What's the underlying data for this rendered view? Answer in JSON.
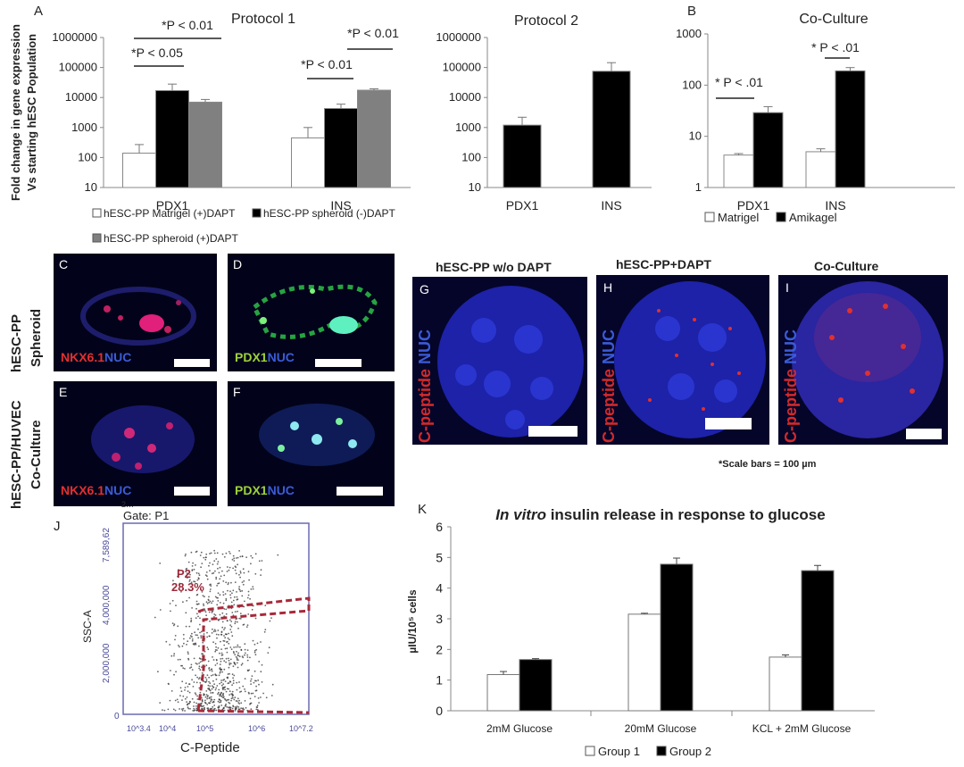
{
  "panels": {
    "a_letter": "A",
    "b_letter": "B",
    "c_letter": "C",
    "d_letter": "D",
    "e_letter": "E",
    "f_letter": "F",
    "g_letter": "G",
    "h_letter": "H",
    "i_letter": "I",
    "j_letter": "J",
    "k_letter": "K"
  },
  "micrographs": {
    "row1_label_a": "hESC-PP",
    "row1_label_b": "Spheroid",
    "row2_label_a": "hESC-PP/HUVEC",
    "row2_label_b": "Co-Culture",
    "c_stain_red": "NKX6.1",
    "c_stain_blue": "NUC",
    "d_stain_green": "PDX1",
    "d_stain_blue": "NUC",
    "e_stain_red": "NKX6.1",
    "e_stain_blue": "NUC",
    "f_stain_green": "PDX1",
    "f_stain_blue": "NUC",
    "g_title": "hESC-PP w/o DAPT",
    "h_title": "hESC-PP+DAPT",
    "i_title": "Co-Culture",
    "cpep_red": "C-peptide",
    "cpep_blue": "NUC",
    "scale_note": "*Scale bars = 100 µm"
  },
  "flow": {
    "gate": "Gate: P1",
    "ytop": "7,589,62",
    "top_fragment": "2…",
    "gate_name": "P2",
    "gate_pct": "28.3%",
    "ylabel": "SSC-A",
    "xlabel": "C-Peptide",
    "yticks": [
      "4,000,000",
      "2,000,000",
      "0"
    ],
    "xticks": [
      "10^3.4",
      "10^4",
      "10^5",
      "10^6",
      "10^7.2"
    ]
  },
  "chart_data": [
    {
      "id": "A",
      "type": "bar",
      "title": "Protocol 1",
      "ylabel_line1": "Fold change in gene expression",
      "ylabel_line2": "Vs starting hESC Population",
      "yscale": "log",
      "ylim": [
        10,
        1000000
      ],
      "yticks": [
        "10",
        "100",
        "1000",
        "10000",
        "100000",
        "1000000"
      ],
      "categories": [
        "PDX1",
        "INS"
      ],
      "series": [
        {
          "name": "hESC-PP Matrigel (+)DAPT",
          "color": "#ffffff",
          "values": [
            140,
            450
          ],
          "errors": [
            130,
            550
          ]
        },
        {
          "name": "hESC-PP spheroid (-)DAPT",
          "color": "#000000",
          "values": [
            17000,
            4300
          ],
          "errors": [
            11000,
            1700
          ]
        },
        {
          "name": "hESC-PP spheroid (+)DAPT",
          "color": "#808080",
          "values": [
            7000,
            17500
          ],
          "errors": [
            1600,
            2000
          ]
        }
      ],
      "annotations": [
        "*P < 0.01",
        "*P < 0.05",
        "*P < 0.01",
        "*P < 0.01"
      ]
    },
    {
      "id": "A2",
      "type": "bar",
      "title": "Protocol 2",
      "yscale": "log",
      "ylim": [
        10,
        1000000
      ],
      "yticks": [
        "10",
        "100",
        "1000",
        "10000",
        "100000",
        "1000000"
      ],
      "categories": [
        "PDX1",
        "INS"
      ],
      "series": [
        {
          "color": "#000000",
          "values": [
            1200,
            75000
          ],
          "errors": [
            1000,
            70000
          ]
        }
      ]
    },
    {
      "id": "B",
      "type": "bar",
      "title": "Co-Culture",
      "yscale": "log",
      "ylim": [
        1,
        1000
      ],
      "yticks": [
        "1",
        "10",
        "100",
        "1000"
      ],
      "categories": [
        "PDX1",
        "INS"
      ],
      "series": [
        {
          "name": "Matrigel",
          "color": "#ffffff",
          "values": [
            4.3,
            5.0
          ],
          "errors": [
            0.3,
            0.7
          ]
        },
        {
          "name": "Amikagel",
          "color": "#000000",
          "values": [
            29,
            190
          ],
          "errors": [
            9,
            30
          ]
        }
      ],
      "annotations": [
        "* P < .01",
        "* P < .01"
      ]
    },
    {
      "id": "K",
      "type": "bar",
      "title_italic": "In vitro",
      "title_rest": " insulin release in response to glucose",
      "ylabel": "µIU/10⁵ cells",
      "ylim": [
        0,
        6
      ],
      "yticks": [
        "0",
        "1",
        "2",
        "3",
        "4",
        "5",
        "6"
      ],
      "categories": [
        "2mM Glucose",
        "20mM Glucose",
        "KCL + 2mM Glucose"
      ],
      "series": [
        {
          "name": "Group 1",
          "color": "#ffffff",
          "values": [
            1.18,
            3.15,
            1.75
          ],
          "errors": [
            0.1,
            0.03,
            0.07
          ]
        },
        {
          "name": "Group 2",
          "color": "#000000",
          "values": [
            1.67,
            4.78,
            4.57
          ],
          "errors": [
            0.03,
            0.2,
            0.17
          ]
        }
      ]
    }
  ]
}
